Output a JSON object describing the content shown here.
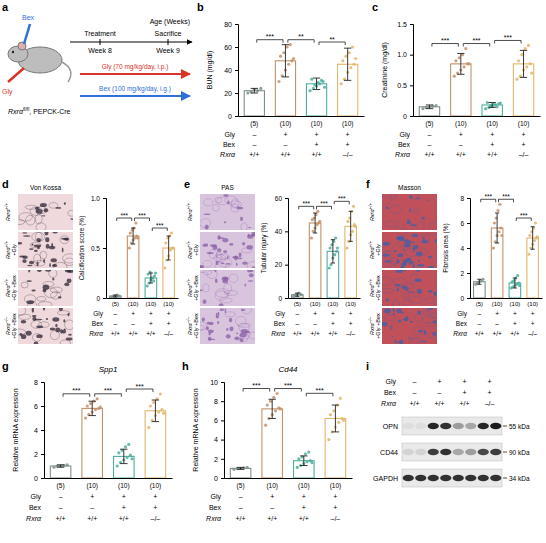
{
  "chart_data": [
    {
      "type": "bar",
      "panel": "b",
      "y_label": "BUN (mg/dl)",
      "ylim": [
        0,
        80
      ],
      "yticks": [
        0,
        20,
        40,
        60,
        80
      ],
      "categories": [
        null,
        null,
        null,
        null
      ],
      "values": [
        22,
        48,
        28,
        45
      ],
      "errors": [
        2,
        14,
        5,
        14
      ],
      "points": [
        [
          20,
          21,
          23,
          22,
          24
        ],
        [
          30,
          35,
          40,
          45,
          48,
          52,
          55,
          60,
          62,
          50
        ],
        [
          22,
          24,
          26,
          28,
          30,
          32,
          27,
          29,
          31,
          25
        ],
        [
          28,
          32,
          38,
          42,
          45,
          48,
          52,
          55,
          60,
          50
        ]
      ],
      "colors": [
        "#7d8f8a",
        "#c4916a",
        "#4fae9e",
        "#e3b56b"
      ],
      "n_labels": [
        "(5)",
        "(10)",
        "(10)",
        "(10)"
      ],
      "annotations": [
        {
          "text": "***",
          "from": 0,
          "to": 1
        },
        {
          "text": "**",
          "from": 1,
          "to": 2
        },
        {
          "text": "**",
          "from": 2,
          "to": 3
        }
      ]
    },
    {
      "type": "bar",
      "panel": "c",
      "y_label": "Creatinine (mg/dl)",
      "ylim": [
        0,
        1.5
      ],
      "yticks": [
        0,
        0.5,
        {
          "value": 1,
          "label": "1.0"
        },
        1.5
      ],
      "categories": [
        null,
        null,
        null,
        null
      ],
      "values": [
        0.15,
        0.85,
        0.18,
        0.85
      ],
      "errors": [
        0.03,
        0.17,
        0.04,
        0.22
      ],
      "points": [
        [
          0.12,
          0.14,
          0.15,
          0.16,
          0.17
        ],
        [
          0.65,
          0.7,
          0.75,
          0.8,
          0.85,
          0.9,
          0.95,
          1.0,
          1.1,
          0.85
        ],
        [
          0.12,
          0.14,
          0.16,
          0.18,
          0.2,
          0.22,
          0.17,
          0.19,
          0.15,
          0.21
        ],
        [
          0.6,
          0.65,
          0.75,
          0.8,
          0.85,
          0.9,
          1.0,
          1.1,
          1.15,
          0.7
        ]
      ],
      "colors": [
        "#7d8f8a",
        "#c4916a",
        "#4fae9e",
        "#e3b56b"
      ],
      "n_labels": [
        "(5)",
        "(10)",
        "(10)",
        "(10)"
      ],
      "annotations": [
        {
          "text": "***",
          "from": 0,
          "to": 1
        },
        {
          "text": "***",
          "from": 1,
          "to": 2
        },
        {
          "text": "***",
          "from": 2,
          "to": 3
        }
      ]
    },
    {
      "type": "bar",
      "panel": "d",
      "image_title": "Von Kossa",
      "y_label": "Calcification score (%)",
      "ylim": [
        0,
        1
      ],
      "yticks": [
        0,
        0.5,
        {
          "value": 1,
          "label": "1.0"
        }
      ],
      "categories": [
        null,
        null,
        null,
        null
      ],
      "values": [
        0.02,
        0.62,
        0.2,
        0.5
      ],
      "errors": [
        0.01,
        0.08,
        0.05,
        0.12
      ],
      "points": [
        [
          0.01,
          0.02,
          0.02,
          0.03,
          0.02
        ],
        [
          0.5,
          0.55,
          0.58,
          0.6,
          0.62,
          0.65,
          0.68,
          0.7,
          0.75,
          0.6
        ],
        [
          0.12,
          0.15,
          0.18,
          0.2,
          0.22,
          0.24,
          0.26,
          0.2,
          0.17,
          0.25
        ],
        [
          0.3,
          0.38,
          0.42,
          0.48,
          0.5,
          0.55,
          0.6,
          0.62,
          0.65,
          0.5
        ]
      ],
      "colors": [
        "#7d8f8a",
        "#c4916a",
        "#4fae9e",
        "#e3b56b"
      ],
      "n_labels": [
        "(5)",
        "(10)",
        "(10)",
        "(10)"
      ],
      "annotations": [
        {
          "text": "***",
          "from": 0,
          "to": 1
        },
        {
          "text": "***",
          "from": 1,
          "to": 2
        },
        {
          "text": "***",
          "from": 2,
          "to": 3
        }
      ]
    },
    {
      "type": "bar",
      "panel": "e",
      "image_title": "PAS",
      "y_label": "Tubular injury (%)",
      "ylim": [
        0,
        60
      ],
      "yticks": [
        0,
        20,
        40,
        60
      ],
      "categories": [
        null,
        null,
        null,
        null
      ],
      "values": [
        2,
        45,
        28,
        43
      ],
      "errors": [
        1,
        6,
        7,
        9
      ],
      "points": [
        [
          1,
          2,
          2,
          3,
          2
        ],
        [
          36,
          40,
          42,
          44,
          45,
          47,
          48,
          50,
          52,
          46
        ],
        [
          18,
          20,
          24,
          26,
          28,
          30,
          32,
          34,
          36,
          30
        ],
        [
          30,
          34,
          38,
          40,
          44,
          46,
          48,
          52,
          55,
          43
        ]
      ],
      "colors": [
        "#7d8f8a",
        "#c4916a",
        "#4fae9e",
        "#e3b56b"
      ],
      "n_labels": [
        "(5)",
        "(10)",
        "(10)",
        "(10)"
      ],
      "annotations": [
        {
          "text": "***",
          "from": 0,
          "to": 1
        },
        {
          "text": "***",
          "from": 1,
          "to": 2
        },
        {
          "text": "***",
          "from": 2,
          "to": 3
        }
      ]
    },
    {
      "type": "bar",
      "panel": "f",
      "image_title": "Masson",
      "y_label": "Fibrosis area (%)",
      "ylim": [
        0,
        8
      ],
      "yticks": [
        0,
        2,
        4,
        6,
        8
      ],
      "categories": [
        null,
        null,
        null,
        null
      ],
      "values": [
        1.3,
        5.6,
        1.2,
        4.8
      ],
      "errors": [
        0.2,
        1.2,
        0.4,
        0.9
      ],
      "points": [
        [
          1.1,
          1.2,
          1.3,
          1.4,
          1.5
        ],
        [
          4,
          4.5,
          5,
          5.3,
          5.6,
          6,
          6.4,
          7,
          7.5,
          5
        ],
        [
          0.8,
          0.9,
          1,
          1.1,
          1.2,
          1.3,
          1.4,
          1.6,
          1.8,
          1
        ],
        [
          3.5,
          4,
          4.3,
          4.6,
          4.8,
          5,
          5.3,
          5.6,
          6,
          4.9
        ]
      ],
      "colors": [
        "#7d8f8a",
        "#c4916a",
        "#4fae9e",
        "#e3b56b"
      ],
      "n_labels": [
        "(5)",
        "(10)",
        "(10)",
        "(10)"
      ],
      "annotations": [
        {
          "text": "***",
          "from": 0,
          "to": 1
        },
        {
          "text": "***",
          "from": 1,
          "to": 2
        },
        {
          "text": "***",
          "from": 2,
          "to": 3
        }
      ]
    },
    {
      "type": "bar",
      "panel": "g",
      "title": "Spp1",
      "y_label": "Relative mRNA expression",
      "ylim": [
        0,
        8
      ],
      "yticks": [
        0,
        2,
        4,
        6,
        8
      ],
      "categories": [
        null,
        null,
        null,
        null
      ],
      "values": [
        1,
        5.8,
        1.8,
        5.6
      ],
      "errors": [
        0.1,
        0.6,
        0.6,
        0.9
      ],
      "points": [
        [
          0.9,
          1,
          1,
          1.05,
          1.1
        ],
        [
          5,
          5.3,
          5.5,
          5.7,
          5.8,
          6,
          6.2,
          6.4,
          6.6,
          5.9
        ],
        [
          1,
          1.3,
          1.5,
          1.7,
          1.9,
          2.1,
          2.3,
          2.6,
          2.8,
          1.6
        ],
        [
          4.2,
          4.8,
          5.2,
          5.5,
          5.7,
          6,
          6.3,
          6.6,
          7,
          5.4
        ]
      ],
      "colors": [
        "#7d8f8a",
        "#c4916a",
        "#4fae9e",
        "#e3b56b"
      ],
      "n_labels": [
        "(5)",
        "(10)",
        "(10)",
        "(10)"
      ],
      "annotations": [
        {
          "text": "***",
          "from": 0,
          "to": 1
        },
        {
          "text": "***",
          "from": 1,
          "to": 2
        },
        {
          "text": "***",
          "from": 2,
          "to": 3
        }
      ]
    },
    {
      "type": "bar",
      "panel": "h",
      "title": "Cd44",
      "y_label": "Relative mRNA expression",
      "ylim": [
        0,
        10
      ],
      "yticks": [
        0,
        2,
        4,
        6,
        8,
        10
      ],
      "categories": [
        null,
        null,
        null,
        null
      ],
      "values": [
        1,
        7.2,
        1.8,
        6.2
      ],
      "errors": [
        0.1,
        1.0,
        0.5,
        1.4
      ],
      "points": [
        [
          0.9,
          1,
          1,
          1.05,
          1.1
        ],
        [
          5.5,
          6.2,
          6.6,
          7,
          7.3,
          7.6,
          8,
          8.4,
          8.8,
          7.2
        ],
        [
          1.1,
          1.3,
          1.5,
          1.7,
          1.8,
          2,
          2.2,
          2.5,
          2.7,
          1.6
        ],
        [
          4,
          4.8,
          5.3,
          5.8,
          6.2,
          6.6,
          7,
          7.6,
          8.3,
          6
        ]
      ],
      "colors": [
        "#7d8f8a",
        "#c4916a",
        "#4fae9e",
        "#e3b56b"
      ],
      "n_labels": [
        "(5)",
        "(10)",
        "(10)",
        "(10)"
      ],
      "annotations": [
        {
          "text": "***",
          "from": 0,
          "to": 1
        },
        {
          "text": "***",
          "from": 1,
          "to": 2
        },
        {
          "text": "***",
          "from": 2,
          "to": 3
        }
      ]
    }
  ],
  "conditions": {
    "rows": [
      {
        "label": "Gly",
        "values": [
          "–",
          "+",
          "+",
          "+"
        ]
      },
      {
        "label": "Bex",
        "values": [
          "–",
          "–",
          "+",
          "+"
        ]
      },
      {
        "label": "Rxrα",
        "values": [
          "+/+",
          "+/+",
          "+/+",
          "–/–"
        ]
      }
    ]
  },
  "image_rows": [
    {
      "gene": "Rxrα",
      "genotype": "+/+"
    },
    {
      "gene": "Rxrα",
      "genotype": "+/+",
      "treatment": "+Gly"
    },
    {
      "gene": "Rxrα",
      "genotype": "+/+",
      "treatment": "+Gly +Bex"
    },
    {
      "gene": "Rxrα",
      "genotype": "–/–",
      "treatment": "+Gly +Bex"
    }
  ],
  "panel_a": {
    "letter": "a",
    "drug1": "Bex",
    "drug2": "Gly",
    "mouse_gene": "Rxrα",
    "mouse_sup": "fl/fl",
    "mouse_suffix": ", PEPCK-Cre",
    "timeline_label": "Age (Weeks)",
    "treatment": "Treatment",
    "sacrifice": "Sacrifice",
    "week_start": "Week 8",
    "week_end": "Week 9",
    "gly_dose": "Gly (70 mg/kg/day, i.p.)",
    "bex_dose": "Bex (100 mg/kg/day, i.g.)"
  },
  "panel_i": {
    "letter": "i",
    "bands": [
      {
        "name": "OPN",
        "size": "55 kDa",
        "intensity": [
          0.05,
          0.05,
          0.9,
          0.85,
          0.35,
          0.3,
          0.9,
          0.95
        ]
      },
      {
        "name": "CD44",
        "size": "90 kDa",
        "intensity": [
          0.1,
          0.1,
          0.8,
          0.85,
          0.3,
          0.35,
          0.75,
          0.8
        ]
      },
      {
        "name": "GAPDH",
        "size": "34 kDa",
        "intensity": [
          0.85,
          0.85,
          0.85,
          0.85,
          0.85,
          0.85,
          0.85,
          0.85
        ]
      }
    ]
  }
}
